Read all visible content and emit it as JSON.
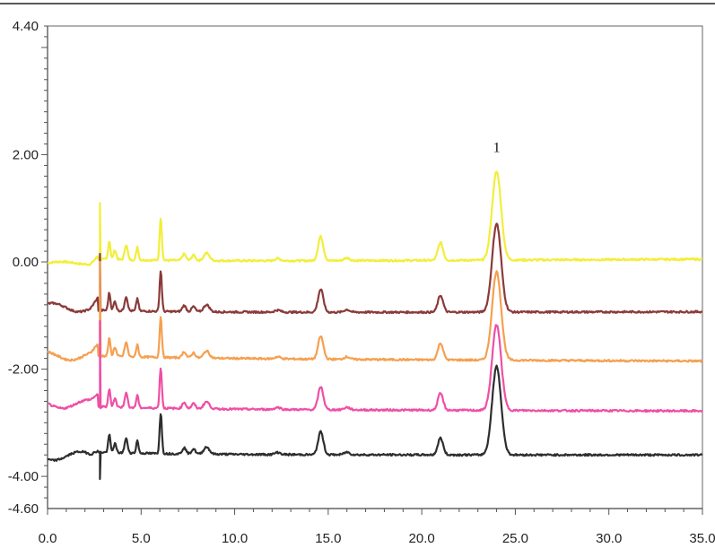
{
  "chart_data": {
    "type": "line",
    "title": "",
    "xlabel": "",
    "ylabel": "",
    "xlim": [
      0.0,
      35.0
    ],
    "ylim": [
      -4.6,
      4.4
    ],
    "grid": false,
    "legend": "none",
    "x_ticks": [
      "0.0",
      "5.0",
      "10.0",
      "15.0",
      "20.0",
      "25.0",
      "30.0",
      "35.0"
    ],
    "x_tick_values": [
      0,
      5,
      10,
      15,
      20,
      25,
      30,
      35
    ],
    "y_ticks": [
      "4.40",
      "2.00",
      "0.00",
      "-2.00",
      "-4.00",
      "-4.60"
    ],
    "y_tick_values": [
      4.4,
      2.0,
      0.0,
      -2.0,
      -4.0,
      -4.6
    ],
    "annotations": [
      {
        "text": "1",
        "x": 24.0,
        "y": 1.95
      }
    ],
    "series": [
      {
        "color": "#f2ee3a",
        "baseline": 0.0,
        "end": 0.05,
        "start": -0.02,
        "spike": 1.1,
        "scale": 1.0,
        "peak": 1.65
      },
      {
        "color": "#8b3a3a",
        "baseline": -0.95,
        "end": -0.93,
        "start": -0.85,
        "spike": 0.15,
        "scale": 0.95,
        "peak": 0.7
      },
      {
        "color": "#f5a050",
        "baseline": -1.8,
        "end": -1.85,
        "start": -1.75,
        "spike": 0.0,
        "scale": 0.95,
        "peak": -0.15
      },
      {
        "color": "#ee4fa6",
        "baseline": -2.75,
        "end": -2.78,
        "start": -2.65,
        "spike": -1.1,
        "scale": 0.95,
        "peak": -1.15
      },
      {
        "color": "#2e2e2e",
        "baseline": -3.6,
        "end": -3.6,
        "start": -3.62,
        "spike": -4.05,
        "scale": 0.95,
        "peak": -1.95
      }
    ],
    "peaks": [
      {
        "x": 3.3,
        "h": 0.35,
        "w": 0.06
      },
      {
        "x": 3.6,
        "h": 0.18,
        "w": 0.07
      },
      {
        "x": 4.2,
        "h": 0.28,
        "w": 0.08
      },
      {
        "x": 4.8,
        "h": 0.25,
        "w": 0.06
      },
      {
        "x": 6.05,
        "h": 0.8,
        "w": 0.06
      },
      {
        "x": 7.3,
        "h": 0.12,
        "w": 0.1
      },
      {
        "x": 7.8,
        "h": 0.1,
        "w": 0.1
      },
      {
        "x": 8.5,
        "h": 0.14,
        "w": 0.15
      },
      {
        "x": 12.3,
        "h": 0.04,
        "w": 0.15
      },
      {
        "x": 14.6,
        "h": 0.45,
        "w": 0.14
      },
      {
        "x": 16.0,
        "h": 0.05,
        "w": 0.15
      },
      {
        "x": 21.0,
        "h": 0.33,
        "w": 0.14
      },
      {
        "x": 24.0,
        "h": 1.65,
        "w": 0.24
      }
    ]
  }
}
